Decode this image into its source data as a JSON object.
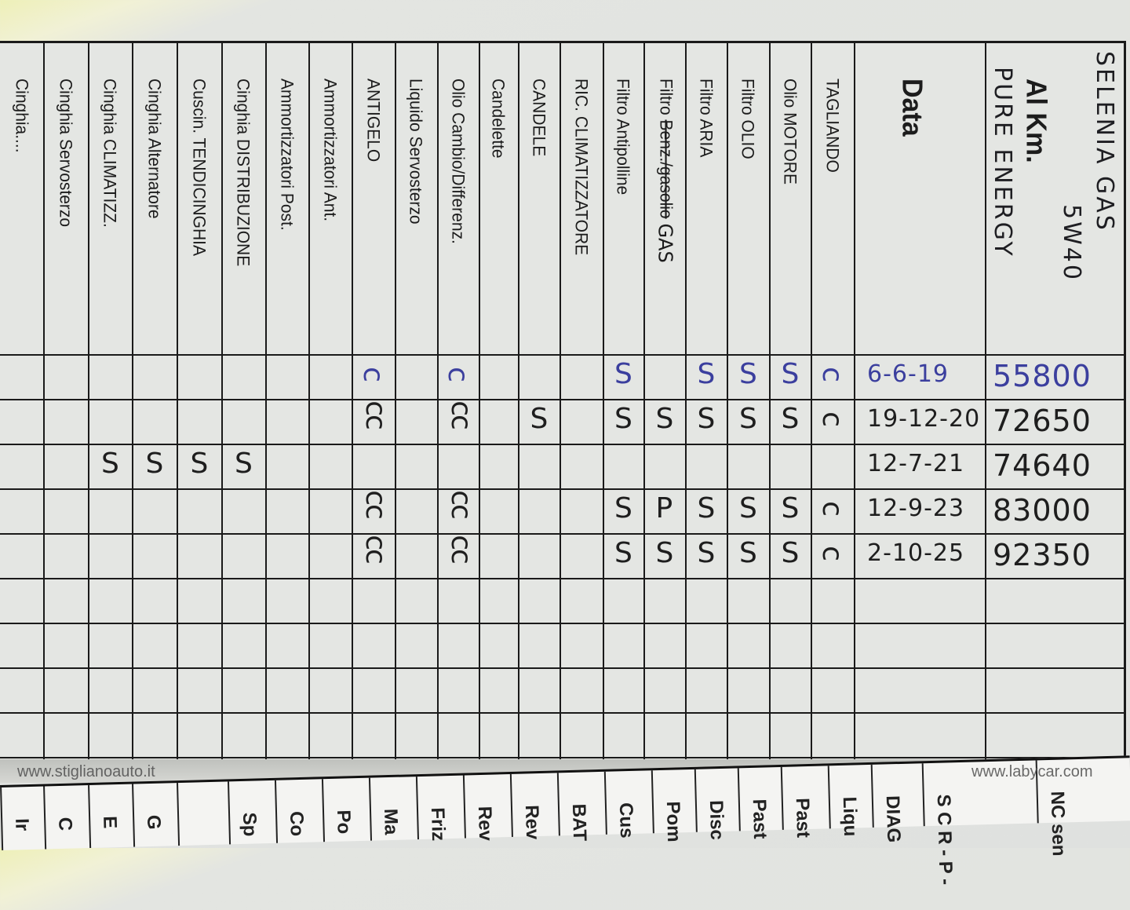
{
  "header_note": {
    "line1": "SELENIA GAS",
    "line2": "5W40",
    "line3": "PURE ENERGY"
  },
  "columns": [
    {
      "label": "Cinghia...."
    },
    {
      "label": "Cinghia Servosterzo"
    },
    {
      "label": "Cinghia CLIMATIZZ."
    },
    {
      "label": "Cinghia Alternatore"
    },
    {
      "label": "Cuscin. TENDICINGHIA"
    },
    {
      "label": "Cinghia DISTRIBUZIONE"
    },
    {
      "label": "Ammortizzatori Post."
    },
    {
      "label": "Ammortizzatori Ant."
    },
    {
      "label": "ANTIGELO"
    },
    {
      "label": "Liquido Servosterzo"
    },
    {
      "label": "Olio Cambio/Differenz."
    },
    {
      "label": "Candelette"
    },
    {
      "label": "CANDELE"
    },
    {
      "label": "RIC. CLIMATIZZATORE"
    },
    {
      "label": "Filtro Antipolline"
    },
    {
      "label": "Filtro",
      "struck": "Benz./gasolio",
      "suffix": "GAS"
    },
    {
      "label": "Filtro ARIA"
    },
    {
      "label": "Filtro OLIO"
    },
    {
      "label": "Olio MOTORE"
    },
    {
      "label": "TAGLIANDO"
    }
  ],
  "date_header": "Data",
  "km_header": "Al Km.",
  "entries": [
    {
      "date": "6-6-19",
      "km": "55800",
      "ink": "#3b3f9e",
      "marks": {
        "8": "c",
        "10": "c",
        "14": "S",
        "16": "S",
        "17": "S",
        "18": "S",
        "19": "c"
      }
    },
    {
      "date": "19-12-20",
      "km": "72650",
      "ink": "#1e1e1e",
      "marks": {
        "8": "cc",
        "10": "cc",
        "12": "S",
        "14": "S",
        "15": "S",
        "16": "S",
        "17": "S",
        "18": "S",
        "19": "c"
      }
    },
    {
      "date": "12-7-21",
      "km": "74640",
      "ink": "#1e1e1e",
      "marks": {
        "2": "S",
        "3": "S",
        "4": "S",
        "5": "S"
      }
    },
    {
      "date": "12-9-23",
      "km": "83000",
      "ink": "#1e1e1e",
      "marks": {
        "8": "cc",
        "10": "cc",
        "14": "S",
        "15": "P",
        "16": "S",
        "17": "S",
        "18": "S",
        "19": "c"
      }
    },
    {
      "date": "2-10-25",
      "km": "92350",
      "ink": "#1e1e1e",
      "marks": {
        "8": "cc",
        "10": "cc",
        "14": "S",
        "15": "S",
        "16": "S",
        "17": "S",
        "18": "S",
        "19": "c"
      }
    }
  ],
  "next_page_labels": [
    "Ir",
    "C",
    "E",
    "G",
    "",
    "Sp",
    "Co",
    "Po",
    "Ma",
    "Friz",
    "Rev",
    "Rev",
    "BAT",
    "Cus",
    "Pom",
    "Disc",
    "Past",
    "Past",
    "Liqu",
    "DIAG",
    "S C R - P -",
    "NC sen"
  ],
  "watermarks": {
    "left": "www.stiglianoauto.it",
    "right": "www.labycar.com"
  }
}
